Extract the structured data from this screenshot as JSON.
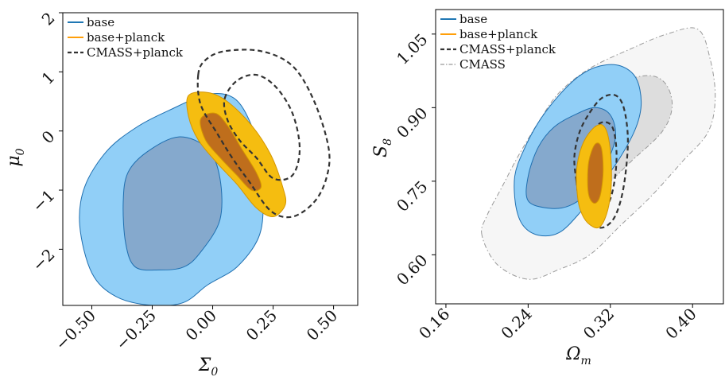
{
  "chart_data": [
    {
      "type": "contour",
      "panel": "left",
      "xlabel": "Σ₀",
      "ylabel": "μ₀",
      "xlim": [
        -0.62,
        0.6
      ],
      "ylim": [
        -2.95,
        2.0
      ],
      "xticks": [
        -0.5,
        -0.25,
        0.0,
        0.25,
        0.5
      ],
      "xtick_labels": [
        "−0.50",
        "−0.25",
        "0.00",
        "0.25",
        "0.50"
      ],
      "yticks": [
        -2,
        -1,
        0,
        1,
        2
      ],
      "ytick_labels": [
        "−2",
        "−1",
        "0",
        "1",
        "2"
      ],
      "legend": {
        "placement": "top-left",
        "entries": [
          {
            "label": "base",
            "color": "#1f77b4",
            "style": "solid"
          },
          {
            "label": "base+planck",
            "color": "#ff9f0a",
            "style": "solid"
          },
          {
            "label": "CMASS+planck",
            "color": "#333333",
            "style": "dashed"
          }
        ]
      },
      "series": [
        {
          "name": "base",
          "fill_outer": "#91cff7",
          "fill_inner": "#85a9cd",
          "stroke": "#1f6fb0",
          "outer": [
            [
              -0.55,
              -1.6
            ],
            [
              -0.5,
              -2.4
            ],
            [
              -0.4,
              -2.8
            ],
            [
              -0.25,
              -2.95
            ],
            [
              -0.12,
              -2.9
            ],
            [
              -0.02,
              -2.6
            ],
            [
              0.1,
              -2.3
            ],
            [
              0.19,
              -1.8
            ],
            [
              0.21,
              -1.2
            ],
            [
              0.2,
              -0.5
            ],
            [
              0.16,
              0.1
            ],
            [
              0.09,
              0.55
            ],
            [
              -0.02,
              0.62
            ],
            [
              -0.18,
              0.35
            ],
            [
              -0.32,
              0.05
            ],
            [
              -0.44,
              -0.35
            ],
            [
              -0.53,
              -0.95
            ]
          ],
          "inner": [
            [
              -0.37,
              -1.2
            ],
            [
              -0.36,
              -1.9
            ],
            [
              -0.32,
              -2.3
            ],
            [
              -0.22,
              -2.35
            ],
            [
              -0.12,
              -2.3
            ],
            [
              -0.05,
              -2.05
            ],
            [
              0.03,
              -1.5
            ],
            [
              0.03,
              -0.8
            ],
            [
              -0.02,
              -0.3
            ],
            [
              -0.14,
              -0.1
            ],
            [
              -0.27,
              -0.35
            ],
            [
              -0.35,
              -0.7
            ]
          ]
        },
        {
          "name": "base+planck",
          "fill_outer": "#f5bd10",
          "fill_inner": "#bf6e1c",
          "stroke": "#d49600",
          "outer": [
            [
              -0.1,
              0.6
            ],
            [
              -0.02,
              0.65
            ],
            [
              0.06,
              0.5
            ],
            [
              0.16,
              0.1
            ],
            [
              0.24,
              -0.4
            ],
            [
              0.29,
              -0.95
            ],
            [
              0.3,
              -1.25
            ],
            [
              0.25,
              -1.45
            ],
            [
              0.18,
              -1.3
            ],
            [
              0.1,
              -0.9
            ],
            [
              0.02,
              -0.55
            ],
            [
              -0.06,
              -0.15
            ],
            [
              -0.1,
              0.25
            ]
          ],
          "inner": [
            [
              -0.05,
              0.2
            ],
            [
              0.01,
              0.3
            ],
            [
              0.06,
              0.1
            ],
            [
              0.12,
              -0.3
            ],
            [
              0.18,
              -0.7
            ],
            [
              0.2,
              -0.95
            ],
            [
              0.16,
              -1.0
            ],
            [
              0.1,
              -0.75
            ],
            [
              0.03,
              -0.45
            ],
            [
              -0.03,
              -0.15
            ]
          ]
        },
        {
          "name": "CMASS+planck",
          "stroke": "#333333",
          "outer": [
            [
              -0.06,
              0.95
            ],
            [
              -0.03,
              1.2
            ],
            [
              0.05,
              1.35
            ],
            [
              0.2,
              1.35
            ],
            [
              0.33,
              1.1
            ],
            [
              0.42,
              0.5
            ],
            [
              0.48,
              -0.3
            ],
            [
              0.47,
              -0.8
            ],
            [
              0.42,
              -1.2
            ],
            [
              0.33,
              -1.45
            ],
            [
              0.24,
              -1.35
            ],
            [
              0.15,
              -0.85
            ],
            [
              0.08,
              -0.45
            ],
            [
              0.02,
              -0.05
            ],
            [
              -0.05,
              0.45
            ]
          ],
          "inner": [
            [
              0.05,
              0.55
            ],
            [
              0.1,
              0.85
            ],
            [
              0.18,
              0.95
            ],
            [
              0.26,
              0.75
            ],
            [
              0.33,
              0.3
            ],
            [
              0.36,
              -0.3
            ],
            [
              0.33,
              -0.75
            ],
            [
              0.25,
              -0.8
            ],
            [
              0.18,
              -0.45
            ],
            [
              0.11,
              -0.15
            ],
            [
              0.06,
              0.2
            ]
          ]
        }
      ]
    },
    {
      "type": "contour",
      "panel": "right",
      "xlabel": "Ωm",
      "ylabel": "S₈",
      "xlim": [
        0.15,
        0.43
      ],
      "ylim": [
        0.5,
        1.1
      ],
      "xticks": [
        0.16,
        0.24,
        0.32,
        0.4
      ],
      "xtick_labels": [
        "0.16",
        "0.24",
        "0.32",
        "0.40"
      ],
      "yticks": [
        0.6,
        0.75,
        0.9,
        1.05
      ],
      "ytick_labels": [
        "0.60",
        "0.75",
        "0.90",
        "1.05"
      ],
      "legend": {
        "placement": "top-left",
        "entries": [
          {
            "label": "base",
            "color": "#1f77b4",
            "style": "solid"
          },
          {
            "label": "base+planck",
            "color": "#ff9f0a",
            "style": "solid"
          },
          {
            "label": "CMASS+planck",
            "color": "#333333",
            "style": "dashed"
          },
          {
            "label": "CMASS",
            "color": "#999999",
            "style": "dashdot"
          }
        ]
      },
      "series": [
        {
          "name": "CMASS",
          "fill_outer": "#f6f6f6",
          "fill_inner": "#dddddd",
          "stroke": "#999999",
          "outer": [
            [
              0.195,
              0.64
            ],
            [
              0.2,
              0.68
            ],
            [
              0.215,
              0.74
            ],
            [
              0.23,
              0.8
            ],
            [
              0.25,
              0.87
            ],
            [
              0.27,
              0.93
            ],
            [
              0.3,
              0.98
            ],
            [
              0.34,
              1.02
            ],
            [
              0.375,
              1.05
            ],
            [
              0.405,
              1.06
            ],
            [
              0.417,
              1.0
            ],
            [
              0.422,
              0.92
            ],
            [
              0.415,
              0.85
            ],
            [
              0.39,
              0.79
            ],
            [
              0.36,
              0.72
            ],
            [
              0.33,
              0.66
            ],
            [
              0.3,
              0.6
            ],
            [
              0.27,
              0.57
            ],
            [
              0.24,
              0.55
            ],
            [
              0.21,
              0.58
            ]
          ],
          "inner": [
            [
              0.24,
              0.655
            ],
            [
              0.23,
              0.69
            ],
            [
              0.235,
              0.74
            ],
            [
              0.25,
              0.8
            ],
            [
              0.27,
              0.86
            ],
            [
              0.3,
              0.915
            ],
            [
              0.335,
              0.955
            ],
            [
              0.36,
              0.965
            ],
            [
              0.375,
              0.945
            ],
            [
              0.38,
              0.9
            ],
            [
              0.37,
              0.85
            ],
            [
              0.34,
              0.79
            ],
            [
              0.31,
              0.73
            ],
            [
              0.28,
              0.68
            ],
            [
              0.26,
              0.66
            ]
          ]
        },
        {
          "name": "base",
          "fill_outer": "#91cff7",
          "fill_inner": "#85a9cd",
          "stroke": "#1f6fb0",
          "outer": [
            [
              0.228,
              0.7
            ],
            [
              0.227,
              0.76
            ],
            [
              0.235,
              0.81
            ],
            [
              0.25,
              0.87
            ],
            [
              0.27,
              0.925
            ],
            [
              0.29,
              0.965
            ],
            [
              0.31,
              0.985
            ],
            [
              0.33,
              0.985
            ],
            [
              0.345,
              0.96
            ],
            [
              0.35,
              0.91
            ],
            [
              0.345,
              0.86
            ],
            [
              0.33,
              0.8
            ],
            [
              0.31,
              0.74
            ],
            [
              0.29,
              0.685
            ],
            [
              0.27,
              0.645
            ],
            [
              0.25,
              0.64
            ],
            [
              0.235,
              0.66
            ]
          ],
          "inner": [
            [
              0.24,
              0.71
            ],
            [
              0.24,
              0.76
            ],
            [
              0.25,
              0.82
            ],
            [
              0.265,
              0.86
            ],
            [
              0.285,
              0.885
            ],
            [
              0.305,
              0.9
            ],
            [
              0.32,
              0.885
            ],
            [
              0.325,
              0.84
            ],
            [
              0.315,
              0.78
            ],
            [
              0.3,
              0.73
            ],
            [
              0.28,
              0.7
            ],
            [
              0.26,
              0.695
            ]
          ]
        },
        {
          "name": "CMASS+planck",
          "stroke": "#333333",
          "outer": [
            [
              0.287,
              0.75
            ],
            [
              0.285,
              0.8
            ],
            [
              0.29,
              0.85
            ],
            [
              0.3,
              0.89
            ],
            [
              0.312,
              0.92
            ],
            [
              0.325,
              0.925
            ],
            [
              0.333,
              0.9
            ],
            [
              0.337,
              0.84
            ],
            [
              0.335,
              0.77
            ],
            [
              0.33,
              0.71
            ],
            [
              0.322,
              0.67
            ],
            [
              0.31,
              0.655
            ],
            [
              0.297,
              0.675
            ],
            [
              0.29,
              0.71
            ]
          ],
          "inner": [
            [
              0.295,
              0.76
            ],
            [
              0.296,
              0.81
            ],
            [
              0.302,
              0.85
            ],
            [
              0.312,
              0.87
            ],
            [
              0.322,
              0.86
            ],
            [
              0.326,
              0.81
            ],
            [
              0.324,
              0.75
            ],
            [
              0.318,
              0.705
            ],
            [
              0.308,
              0.7
            ],
            [
              0.299,
              0.72
            ]
          ]
        },
        {
          "name": "base+planck",
          "fill_outer": "#f5bd10",
          "fill_inner": "#bf6e1c",
          "stroke": "#d49600",
          "outer": [
            [
              0.288,
              0.72
            ],
            [
              0.287,
              0.77
            ],
            [
              0.292,
              0.82
            ],
            [
              0.302,
              0.855
            ],
            [
              0.312,
              0.865
            ],
            [
              0.318,
              0.84
            ],
            [
              0.321,
              0.78
            ],
            [
              0.32,
              0.72
            ],
            [
              0.315,
              0.675
            ],
            [
              0.308,
              0.655
            ],
            [
              0.298,
              0.665
            ],
            [
              0.291,
              0.69
            ]
          ],
          "inner": [
            [
              0.298,
              0.74
            ],
            [
              0.299,
              0.79
            ],
            [
              0.305,
              0.825
            ],
            [
              0.311,
              0.82
            ],
            [
              0.313,
              0.77
            ],
            [
              0.31,
              0.72
            ],
            [
              0.305,
              0.705
            ],
            [
              0.3,
              0.715
            ]
          ]
        }
      ]
    }
  ]
}
